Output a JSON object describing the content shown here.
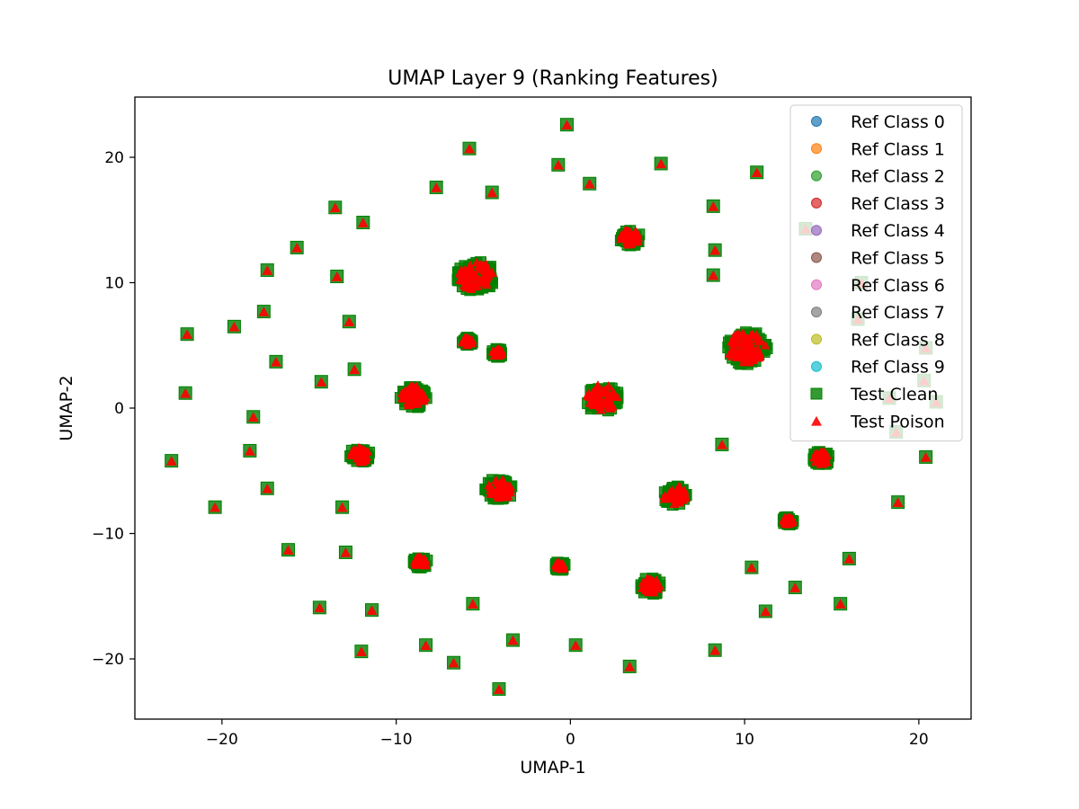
{
  "chart_data": {
    "type": "scatter",
    "title": "UMAP Layer 9 (Ranking Features)",
    "xlabel": "UMAP-1",
    "ylabel": "UMAP-2",
    "xlim": [
      -25,
      23
    ],
    "ylim": [
      -24.8,
      24.8
    ],
    "x_ticks": [
      -20,
      -10,
      0,
      10,
      20
    ],
    "y_ticks": [
      -20,
      -10,
      0,
      10,
      20
    ],
    "x_tick_labels": [
      "−20",
      "−10",
      "0",
      "10",
      "20"
    ],
    "y_tick_labels": [
      "−20",
      "−10",
      "0",
      "10",
      "20"
    ],
    "grid": false,
    "legend_position": "top-right",
    "series": [
      {
        "name": "Ref Class 0",
        "marker": "circle",
        "color": "#1f77b4",
        "points": []
      },
      {
        "name": "Ref Class 1",
        "marker": "circle",
        "color": "#ff7f0e",
        "points": []
      },
      {
        "name": "Ref Class 2",
        "marker": "circle",
        "color": "#2ca02c",
        "points": []
      },
      {
        "name": "Ref Class 3",
        "marker": "circle",
        "color": "#d62728",
        "points": []
      },
      {
        "name": "Ref Class 4",
        "marker": "circle",
        "color": "#9467bd",
        "points": []
      },
      {
        "name": "Ref Class 5",
        "marker": "circle",
        "color": "#8c564b",
        "points": []
      },
      {
        "name": "Ref Class 6",
        "marker": "circle",
        "color": "#e377c2",
        "points": []
      },
      {
        "name": "Ref Class 7",
        "marker": "circle",
        "color": "#7f7f7f",
        "points": []
      },
      {
        "name": "Ref Class 8",
        "marker": "circle",
        "color": "#bcbd22",
        "points": []
      },
      {
        "name": "Ref Class 9",
        "marker": "circle",
        "color": "#17becf",
        "points": []
      },
      {
        "name": "Test Clean",
        "marker": "square",
        "color": "#008000",
        "points": "same as Test Poison cluster positions"
      },
      {
        "name": "Test Poison",
        "marker": "triangle",
        "color": "#ff0000",
        "points": "see clusters"
      }
    ],
    "clusters": [
      {
        "x": -0.2,
        "y": 22.6,
        "r": 0
      },
      {
        "x": -5.8,
        "y": 20.7,
        "r": 0
      },
      {
        "x": -0.7,
        "y": 19.4,
        "r": 0
      },
      {
        "x": 5.2,
        "y": 19.5,
        "r": 0
      },
      {
        "x": 10.7,
        "y": 18.8,
        "r": 0
      },
      {
        "x": 1.1,
        "y": 17.9,
        "r": 0
      },
      {
        "x": -7.7,
        "y": 17.6,
        "r": 0
      },
      {
        "x": -4.5,
        "y": 17.2,
        "r": 0
      },
      {
        "x": 8.2,
        "y": 16.1,
        "r": 0
      },
      {
        "x": -13.5,
        "y": 16.0,
        "r": 0
      },
      {
        "x": 13.5,
        "y": 14.3,
        "r": 0
      },
      {
        "x": -11.9,
        "y": 14.8,
        "r": 0
      },
      {
        "x": 3.4,
        "y": 13.6,
        "r": 0.6
      },
      {
        "x": -15.7,
        "y": 12.8,
        "r": 0
      },
      {
        "x": 8.3,
        "y": 12.6,
        "r": 0
      },
      {
        "x": -17.4,
        "y": 11.0,
        "r": 0
      },
      {
        "x": -13.4,
        "y": 10.5,
        "r": 0
      },
      {
        "x": -5.4,
        "y": 10.5,
        "r": 1.1
      },
      {
        "x": 8.2,
        "y": 10.6,
        "r": 0
      },
      {
        "x": 16.7,
        "y": 10.0,
        "r": 0
      },
      {
        "x": -17.6,
        "y": 7.7,
        "r": 0
      },
      {
        "x": -12.7,
        "y": 6.9,
        "r": 0
      },
      {
        "x": 16.5,
        "y": 7.1,
        "r": 0
      },
      {
        "x": -19.3,
        "y": 6.5,
        "r": 0
      },
      {
        "x": -22.0,
        "y": 5.9,
        "r": 0
      },
      {
        "x": 10.1,
        "y": 4.8,
        "r": 1.2
      },
      {
        "x": -5.9,
        "y": 5.3,
        "r": 0.3
      },
      {
        "x": -4.2,
        "y": 4.4,
        "r": 0.3
      },
      {
        "x": 20.4,
        "y": 4.8,
        "r": 0
      },
      {
        "x": -16.9,
        "y": 3.7,
        "r": 0
      },
      {
        "x": -12.4,
        "y": 3.1,
        "r": 0
      },
      {
        "x": -14.3,
        "y": 2.1,
        "r": 0
      },
      {
        "x": 20.3,
        "y": 2.2,
        "r": 0
      },
      {
        "x": -22.1,
        "y": 1.2,
        "r": 0
      },
      {
        "x": -9.0,
        "y": 0.9,
        "r": 0.8
      },
      {
        "x": 1.8,
        "y": 0.8,
        "r": 1.0
      },
      {
        "x": 18.3,
        "y": 0.8,
        "r": 0
      },
      {
        "x": 21.0,
        "y": 0.5,
        "r": 0
      },
      {
        "x": -18.2,
        "y": -0.7,
        "r": 0
      },
      {
        "x": 18.7,
        "y": -1.9,
        "r": 0
      },
      {
        "x": 8.7,
        "y": -2.9,
        "r": 0
      },
      {
        "x": -18.4,
        "y": -3.4,
        "r": 0
      },
      {
        "x": -12.1,
        "y": -3.8,
        "r": 0.6
      },
      {
        "x": 14.4,
        "y": -4.0,
        "r": 0.5
      },
      {
        "x": -22.9,
        "y": -4.2,
        "r": 0
      },
      {
        "x": 20.4,
        "y": -3.9,
        "r": 0
      },
      {
        "x": -17.4,
        "y": -6.4,
        "r": 0
      },
      {
        "x": -4.1,
        "y": -6.5,
        "r": 0.8
      },
      {
        "x": 6.0,
        "y": -7.0,
        "r": 0.7
      },
      {
        "x": 18.8,
        "y": -7.5,
        "r": 0
      },
      {
        "x": -20.4,
        "y": -7.9,
        "r": 0
      },
      {
        "x": -13.1,
        "y": -7.9,
        "r": 0
      },
      {
        "x": 12.5,
        "y": -9.0,
        "r": 0.3
      },
      {
        "x": -16.2,
        "y": -11.3,
        "r": 0
      },
      {
        "x": -12.9,
        "y": -11.5,
        "r": 0
      },
      {
        "x": 16.0,
        "y": -12.0,
        "r": 0
      },
      {
        "x": -8.6,
        "y": -12.3,
        "r": 0.4
      },
      {
        "x": -0.6,
        "y": -12.6,
        "r": 0.3
      },
      {
        "x": 10.4,
        "y": -12.7,
        "r": 0
      },
      {
        "x": 4.6,
        "y": -14.2,
        "r": 0.6
      },
      {
        "x": 12.9,
        "y": -14.3,
        "r": 0
      },
      {
        "x": -5.6,
        "y": -15.6,
        "r": 0
      },
      {
        "x": 15.5,
        "y": -15.6,
        "r": 0
      },
      {
        "x": -14.4,
        "y": -15.9,
        "r": 0
      },
      {
        "x": -11.4,
        "y": -16.1,
        "r": 0
      },
      {
        "x": 11.2,
        "y": -16.2,
        "r": 0
      },
      {
        "x": -3.3,
        "y": -18.5,
        "r": 0
      },
      {
        "x": -8.3,
        "y": -18.9,
        "r": 0
      },
      {
        "x": 0.3,
        "y": -18.9,
        "r": 0
      },
      {
        "x": -12.0,
        "y": -19.4,
        "r": 0
      },
      {
        "x": 8.3,
        "y": -19.3,
        "r": 0
      },
      {
        "x": -6.7,
        "y": -20.3,
        "r": 0
      },
      {
        "x": 3.4,
        "y": -20.6,
        "r": 0
      },
      {
        "x": -4.1,
        "y": -22.4,
        "r": 0
      }
    ]
  }
}
